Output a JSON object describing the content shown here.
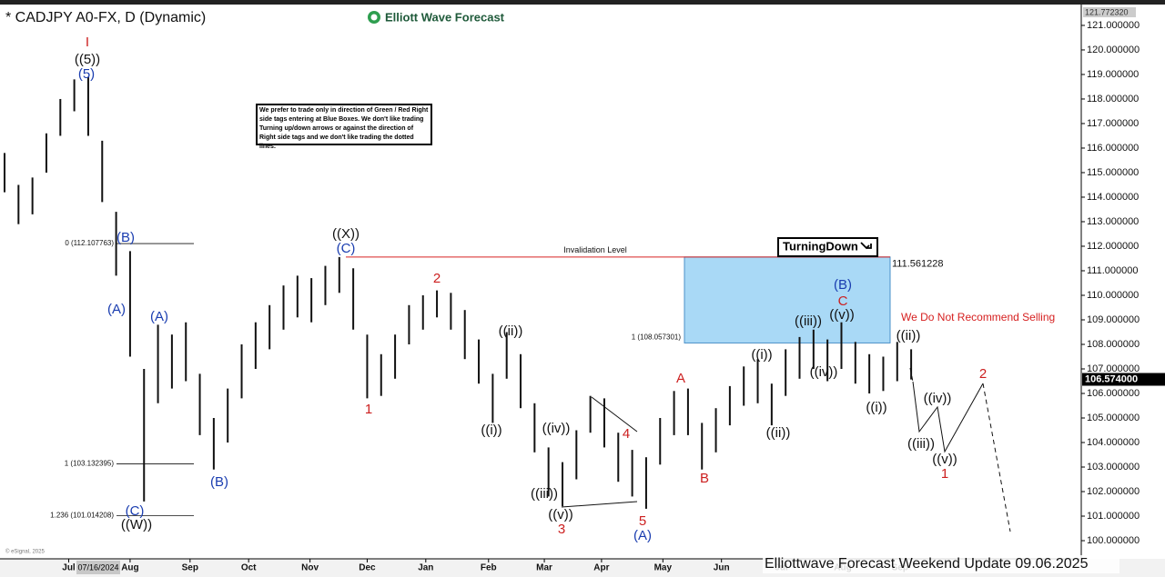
{
  "chart_data": {
    "type": "range-bar",
    "title": "* CADJPY A0-FX, D (Dynamic)",
    "brand": "Elliott Wave Forecast",
    "footer": "Elliottwave Forecast Weekend  Update 09.06.2025",
    "copyright": "© eSignal, 2025",
    "cursor_date": "07/16/2024",
    "note": "We prefer to trade only in direction of Green / Red Right side tags entering at Blue Boxes. We don't like trading Turning up/down arrows or against the direction of Right side tags and we don't like trading the dotted lines.",
    "signal": "TurningDown",
    "warning": "We Do Not Recommend Selling",
    "color": "#111111",
    "xlim": [
      0,
      77
    ],
    "ylim": [
      99.26,
      121.85
    ],
    "x": [
      0,
      1,
      2,
      3,
      4,
      5,
      6,
      7,
      8,
      9,
      10,
      11,
      12,
      13,
      14,
      15,
      16,
      17,
      18,
      19,
      20,
      21,
      22,
      23,
      24,
      25,
      26,
      27,
      28,
      29,
      30,
      31,
      32,
      33,
      34,
      35,
      36,
      37,
      38,
      39,
      40,
      41,
      42,
      43,
      44,
      45,
      46,
      47,
      48,
      49,
      50,
      51,
      52,
      53,
      54,
      55,
      56,
      57,
      58,
      59,
      60,
      61,
      62,
      63,
      64,
      65
    ],
    "high": [
      115.8,
      114.5,
      114.8,
      116.6,
      118,
      118.8,
      118.9,
      116.3,
      113.4,
      111.8,
      107,
      108.8,
      108.4,
      108.9,
      106.8,
      105,
      106.2,
      108,
      108.9,
      109.6,
      110.4,
      110.8,
      110.7,
      111.2,
      111.56,
      111.1,
      108.4,
      107.6,
      108.4,
      109.6,
      110,
      110.2,
      110.1,
      109.4,
      108.2,
      106.8,
      108.5,
      107.6,
      105.6,
      103.8,
      103.2,
      104.5,
      105.9,
      105.8,
      104.4,
      103.7,
      103.4,
      105,
      106.1,
      106.2,
      104.8,
      105.4,
      106.3,
      107.1,
      107.4,
      106.4,
      107.8,
      108.3,
      108.6,
      108.2,
      108.9,
      108.1,
      107.6,
      107.5,
      108.1,
      107.8
    ],
    "low": [
      114.2,
      112.9,
      113.3,
      115,
      116.5,
      117.5,
      116.5,
      113.8,
      110.8,
      107.5,
      101.6,
      105.6,
      106.2,
      106.5,
      104.3,
      102.9,
      104,
      105.8,
      107,
      107.8,
      108.6,
      109.1,
      108.9,
      109.6,
      110.1,
      108.6,
      105.8,
      105.9,
      106.6,
      108,
      108.6,
      109.1,
      108.6,
      107.4,
      106.4,
      104.8,
      106.6,
      105.4,
      103.6,
      101.8,
      101.4,
      102.5,
      104.4,
      103.8,
      102.4,
      101.8,
      101.3,
      103.1,
      104.3,
      104.3,
      102.9,
      103.6,
      104.7,
      105.5,
      105.6,
      104.7,
      105.9,
      106.6,
      107,
      106.5,
      107,
      106.4,
      106,
      106.1,
      106.5,
      106.57
    ],
    "xticks": [
      {
        "value": 4.6,
        "label": "Jul"
      },
      {
        "value": 9.0,
        "label": "Aug"
      },
      {
        "value": 13.3,
        "label": "Sep"
      },
      {
        "value": 17.5,
        "label": "Oct"
      },
      {
        "value": 21.9,
        "label": "Nov"
      },
      {
        "value": 26.0,
        "label": "Dec"
      },
      {
        "value": 30.2,
        "label": "Jan"
      },
      {
        "value": 34.7,
        "label": "Feb"
      },
      {
        "value": 38.7,
        "label": "Mar"
      },
      {
        "value": 42.8,
        "label": "Apr"
      },
      {
        "value": 47.2,
        "label": "May"
      },
      {
        "value": 51.4,
        "label": "Jun"
      },
      {
        "value": 55.7,
        "label": "Jul"
      },
      {
        "value": 60.1,
        "label": "Aug"
      },
      {
        "value": 64.2,
        "label": "Sep"
      }
    ],
    "yticks": [
      {
        "value": 100,
        "label": "100.000000"
      },
      {
        "value": 101,
        "label": "101.000000"
      },
      {
        "value": 102,
        "label": "102.000000"
      },
      {
        "value": 103,
        "label": "103.000000"
      },
      {
        "value": 104,
        "label": "104.000000"
      },
      {
        "value": 105,
        "label": "105.000000"
      },
      {
        "value": 106,
        "label": "106.000000"
      },
      {
        "value": 107,
        "label": "107.000000"
      },
      {
        "value": 108,
        "label": "108.000000"
      },
      {
        "value": 109,
        "label": "109.000000"
      },
      {
        "value": 110,
        "label": "110.000000"
      },
      {
        "value": 111,
        "label": "111.000000"
      },
      {
        "value": 112,
        "label": "112.000000"
      },
      {
        "value": 113,
        "label": "113.000000"
      },
      {
        "value": 114,
        "label": "114.000000"
      },
      {
        "value": 115,
        "label": "115.000000"
      },
      {
        "value": 116,
        "label": "116.000000"
      },
      {
        "value": 117,
        "label": "117.000000"
      },
      {
        "value": 118,
        "label": "118.000000"
      },
      {
        "value": 119,
        "label": "119.000000"
      },
      {
        "value": 120,
        "label": "120.000000"
      },
      {
        "value": 121,
        "label": "121.000000"
      }
    ],
    "top_price": {
      "value": 121.77232,
      "label": "121.772320"
    },
    "last_price": {
      "value": 106.574,
      "label": "106.574000"
    },
    "levels": [
      {
        "value": 112.107763,
        "label": "0 (112.107763)"
      },
      {
        "value": 103.132395,
        "label": "1 (103.132395)"
      },
      {
        "value": 101.014208,
        "label": "1.236 (101.014208)"
      }
    ],
    "zone": {
      "low": 108.057301,
      "high": 111.561228,
      "low_label": "1 (108.057301)",
      "high_label": "111.561228",
      "color": "#a9d9f6"
    },
    "invalidation": {
      "value": 111.561228,
      "label": "Invalidation Level",
      "color": "#d62020"
    },
    "wave_labels": [
      {
        "text": "I",
        "color": "#cc1f1f"
      },
      {
        "text": "((5))",
        "color": "#111111"
      },
      {
        "text": "(5)",
        "color": "#1a3db0"
      },
      {
        "text": "(B)",
        "color": "#1a3db0"
      },
      {
        "text": "(A)",
        "color": "#1a3db0"
      },
      {
        "text": "(A)",
        "color": "#1a3db0"
      },
      {
        "text": "(C)",
        "color": "#1a3db0"
      },
      {
        "text": "((W))",
        "color": "#111111"
      },
      {
        "text": "(B)",
        "color": "#1a3db0"
      },
      {
        "text": "((X))",
        "color": "#111111"
      },
      {
        "text": "(C)",
        "color": "#1a3db0"
      },
      {
        "text": "1",
        "color": "#cc1f1f"
      },
      {
        "text": "2",
        "color": "#cc1f1f"
      },
      {
        "text": "((ii))",
        "color": "#111111"
      },
      {
        "text": "((i))",
        "color": "#111111"
      },
      {
        "text": "((iv))",
        "color": "#111111"
      },
      {
        "text": "((iii))",
        "color": "#111111"
      },
      {
        "text": "((v))",
        "color": "#111111"
      },
      {
        "text": "3",
        "color": "#cc1f1f"
      },
      {
        "text": "4",
        "color": "#cc1f1f"
      },
      {
        "text": "5",
        "color": "#cc1f1f"
      },
      {
        "text": "(A)",
        "color": "#1a3db0"
      },
      {
        "text": "A",
        "color": "#cc1f1f"
      },
      {
        "text": "B",
        "color": "#cc1f1f"
      },
      {
        "text": "((i))",
        "color": "#111111"
      },
      {
        "text": "((ii))",
        "color": "#111111"
      },
      {
        "text": "((iii))",
        "color": "#111111"
      },
      {
        "text": "((iv))",
        "color": "#111111"
      },
      {
        "text": "(B)",
        "color": "#1a3db0"
      },
      {
        "text": "C",
        "color": "#cc1f1f"
      },
      {
        "text": "((v))",
        "color": "#111111"
      },
      {
        "text": "((i))",
        "color": "#111111"
      },
      {
        "text": "((ii))",
        "color": "#111111"
      },
      {
        "text": "((iii))",
        "color": "#111111"
      },
      {
        "text": "((iv))",
        "color": "#111111"
      },
      {
        "text": "((v))",
        "color": "#111111"
      },
      {
        "text": "1",
        "color": "#cc1f1f"
      },
      {
        "text": "2",
        "color": "#cc1f1f"
      }
    ]
  }
}
